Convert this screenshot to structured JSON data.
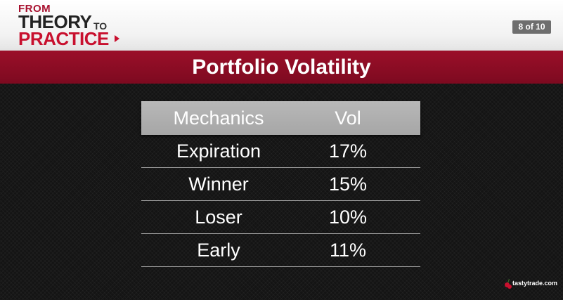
{
  "header": {
    "logo": {
      "from": "FROM",
      "theory": "THEORY",
      "to": "TO",
      "practice": "PRACTICE"
    },
    "pager": "8 of 10"
  },
  "slide": {
    "title": "Portfolio Volatility"
  },
  "table": {
    "columns": [
      "Mechanics",
      "Vol"
    ],
    "rows": [
      [
        "Expiration",
        "17%"
      ],
      [
        "Winner",
        "15%"
      ],
      [
        "Loser",
        "10%"
      ],
      [
        "Early",
        "11%"
      ]
    ]
  },
  "brand": {
    "text": "tastytrade.com"
  },
  "colors": {
    "accent": "#c8102e",
    "title_bar": "#8c0d25",
    "background": "#141414",
    "header_row": "#b0b0b0"
  }
}
